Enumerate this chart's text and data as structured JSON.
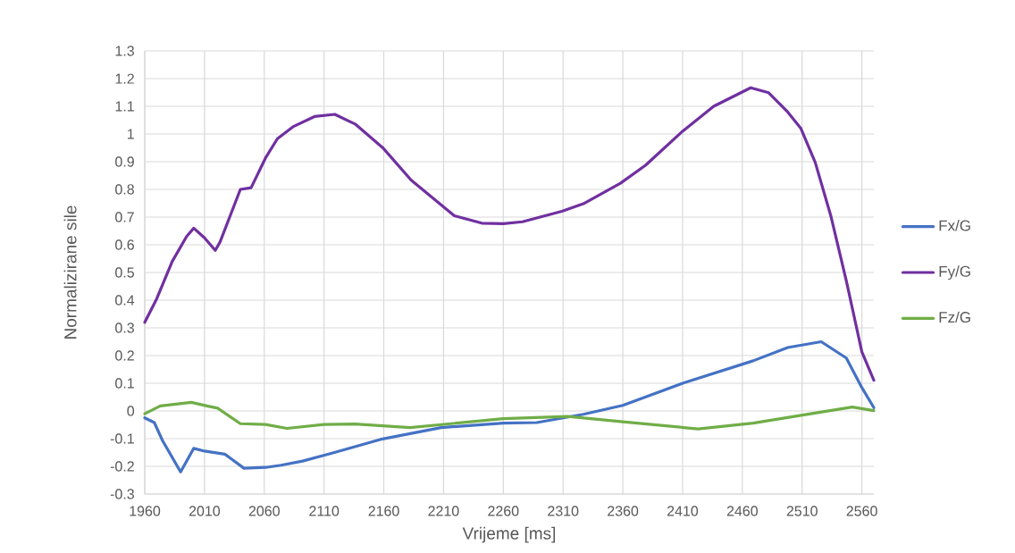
{
  "chart_data": {
    "type": "line",
    "xlabel": "Vrijeme [ms]",
    "ylabel": "Normalizirane sile",
    "xlim": [
      1960,
      2570
    ],
    "xticks": [
      1960,
      2010,
      2060,
      2110,
      2160,
      2210,
      2260,
      2310,
      2360,
      2410,
      2460,
      2510,
      2560
    ],
    "ylim": [
      -0.3,
      1.3
    ],
    "yticks": [
      -0.3,
      -0.2,
      -0.1,
      0,
      0.1,
      0.2,
      0.3,
      0.4,
      0.5,
      0.6,
      0.7,
      0.8,
      0.9,
      1,
      1.1,
      1.2,
      1.3
    ],
    "grid": true,
    "legend": "right",
    "marker": "none",
    "line_style": "solid",
    "series": [
      {
        "name": "Fx/G",
        "color": "#4472c4",
        "x": [
          1960,
          1968,
          1975,
          1990,
          2001,
          2010,
          2027,
          2032,
          2043,
          2061,
          2074,
          2092,
          2118,
          2157,
          2208,
          2260,
          2288,
          2327,
          2360,
          2410,
          2469,
          2498,
          2526,
          2547,
          2560,
          2570
        ],
        "values": [
          -0.025,
          -0.042,
          -0.108,
          -0.22,
          -0.135,
          -0.145,
          -0.156,
          -0.172,
          -0.207,
          -0.204,
          -0.196,
          -0.181,
          -0.151,
          -0.103,
          -0.06,
          -0.044,
          -0.042,
          -0.012,
          0.02,
          0.1,
          0.181,
          0.229,
          0.25,
          0.191,
          0.084,
          0.012
        ]
      },
      {
        "name": "Fy/G",
        "color": "#7030a0",
        "x": [
          1960,
          1970,
          1983,
          1995,
          2001,
          2010,
          2019,
          2023,
          2040,
          2049,
          2061,
          2071,
          2084,
          2102,
          2119,
          2136,
          2159,
          2183,
          2219,
          2242,
          2260,
          2276,
          2309,
          2327,
          2358,
          2379,
          2410,
          2436,
          2467,
          2482,
          2498,
          2509,
          2521,
          2534,
          2547,
          2560,
          2570
        ],
        "values": [
          0.32,
          0.405,
          0.54,
          0.63,
          0.66,
          0.625,
          0.58,
          0.61,
          0.8,
          0.806,
          0.913,
          0.983,
          1.026,
          1.063,
          1.071,
          1.036,
          0.951,
          0.833,
          0.705,
          0.678,
          0.676,
          0.683,
          0.721,
          0.748,
          0.822,
          0.887,
          1.01,
          1.1,
          1.167,
          1.149,
          1.079,
          1.02,
          0.897,
          0.705,
          0.47,
          0.213,
          0.111
        ]
      },
      {
        "name": "Fz/G",
        "color": "#70ad47",
        "x": [
          1960,
          1973,
          1999,
          2012,
          2021,
          2040,
          2061,
          2079,
          2110,
          2136,
          2182,
          2260,
          2314,
          2360,
          2423,
          2469,
          2523,
          2552,
          2570
        ],
        "values": [
          -0.01,
          0.018,
          0.031,
          0.018,
          0.01,
          -0.046,
          -0.049,
          -0.063,
          -0.049,
          -0.047,
          -0.06,
          -0.028,
          -0.02,
          -0.039,
          -0.065,
          -0.044,
          -0.006,
          0.014,
          0.001
        ]
      }
    ]
  }
}
